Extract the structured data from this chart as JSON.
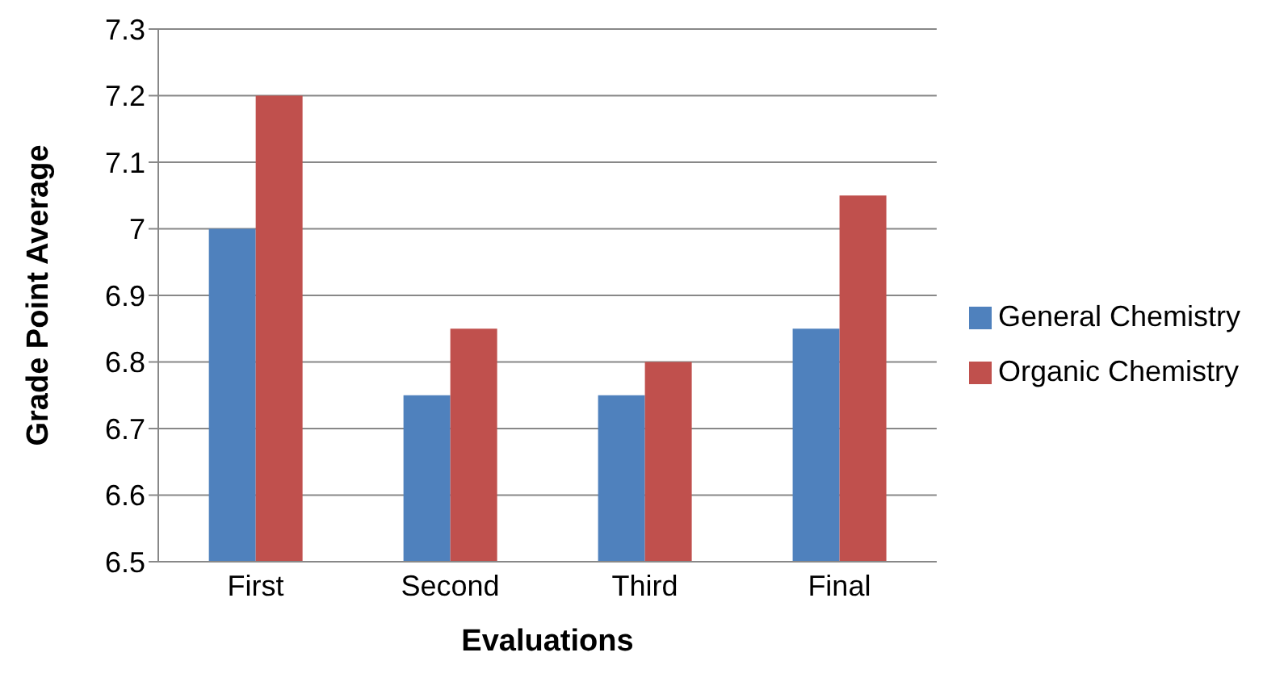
{
  "chart_data": {
    "type": "bar",
    "xlabel": "Evaluations",
    "ylabel": "Grade Point Average",
    "categories": [
      "First",
      "Second",
      "Third",
      "Final"
    ],
    "series": [
      {
        "name": "General Chemistry",
        "color": "#4f81bd",
        "values": [
          7.0,
          6.75,
          6.75,
          6.85
        ]
      },
      {
        "name": "Organic Chemistry",
        "color": "#c0504d",
        "values": [
          7.2,
          6.85,
          6.8,
          7.05
        ]
      }
    ],
    "ylim": [
      6.5,
      7.3
    ],
    "yticks": [
      6.5,
      6.6,
      6.7,
      6.8,
      6.9,
      7,
      7.1,
      7.2,
      7.3
    ],
    "grid": "y",
    "legend": "right"
  }
}
